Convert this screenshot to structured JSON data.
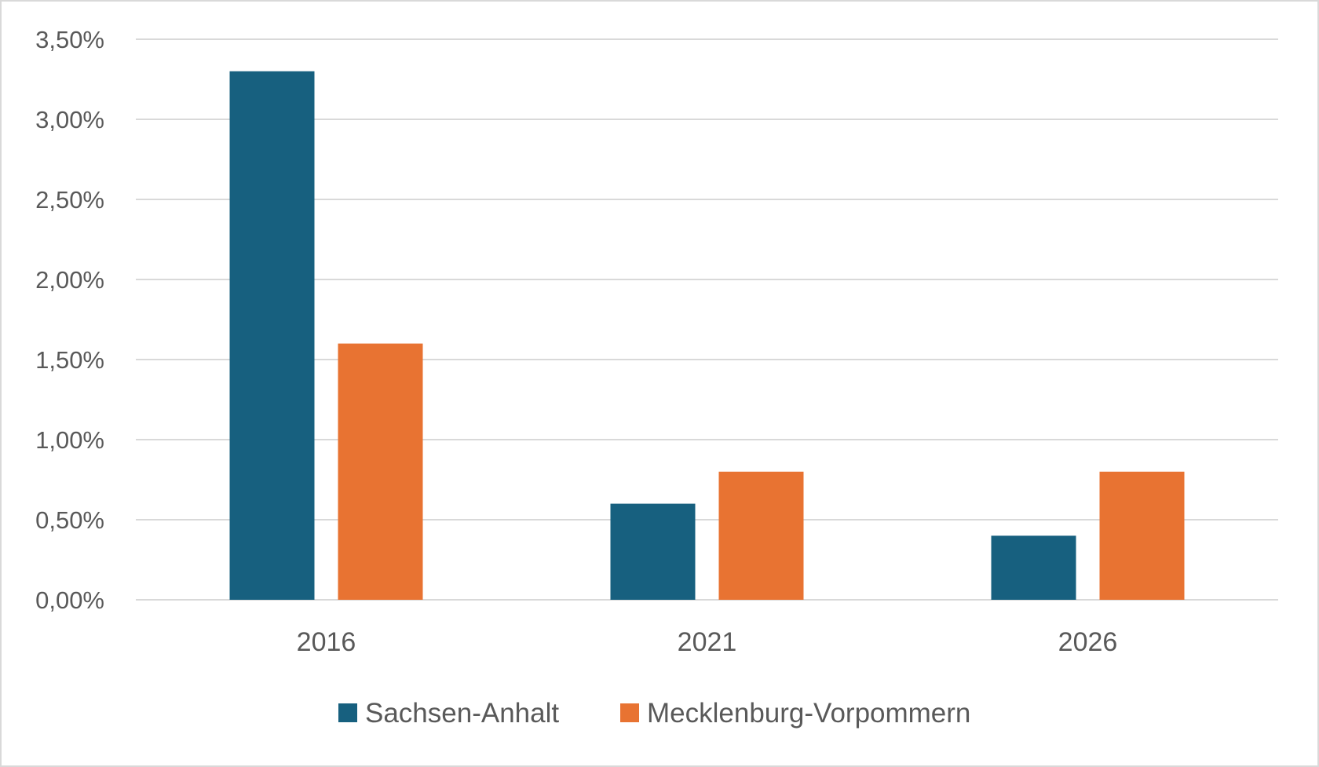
{
  "chart_data": {
    "type": "bar",
    "categories": [
      "2016",
      "2021",
      "2026"
    ],
    "series": [
      {
        "name": "Sachsen-Anhalt",
        "values": [
          3.3,
          0.6,
          0.4
        ],
        "color": "#17607f"
      },
      {
        "name": "Mecklenburg-Vorpommern",
        "values": [
          1.6,
          0.8,
          0.8
        ],
        "color": "#e87332"
      }
    ],
    "ylim": [
      0,
      3.5
    ],
    "yticks": [
      "0,00%",
      "0,50%",
      "1,00%",
      "1,50%",
      "2,00%",
      "2,50%",
      "3,00%",
      "3,50%"
    ],
    "grid": true,
    "legend_position": "bottom",
    "gridline_color": "#d9d9d9"
  }
}
